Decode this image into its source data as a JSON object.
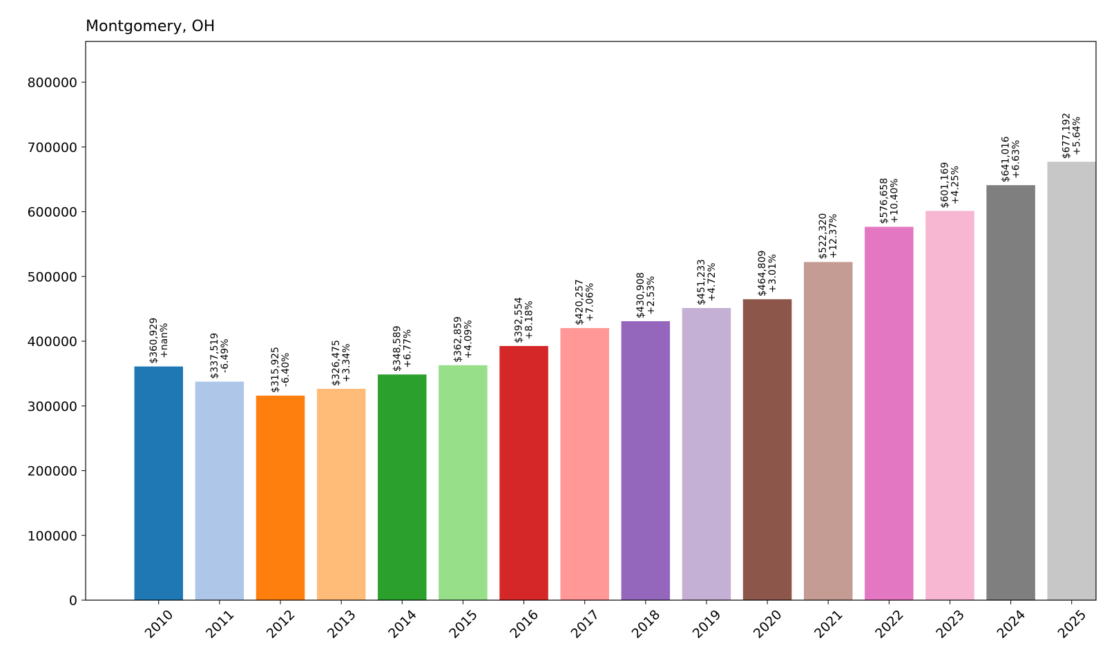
{
  "chart_data": {
    "type": "bar",
    "title": "Montgomery, OH",
    "xlabel": "",
    "ylabel": "",
    "ylim": [
      0,
      863000
    ],
    "yticks": [
      0,
      100000,
      200000,
      300000,
      400000,
      500000,
      600000,
      700000,
      800000
    ],
    "grid": false,
    "legend": "none",
    "categories": [
      "2010",
      "2011",
      "2012",
      "2013",
      "2014",
      "2015",
      "2016",
      "2017",
      "2018",
      "2019",
      "2020",
      "2021",
      "2022",
      "2023",
      "2024",
      "2025"
    ],
    "values": [
      360929,
      337519,
      315925,
      326475,
      348589,
      362859,
      392554,
      420257,
      430908,
      451233,
      464809,
      522320,
      576658,
      601169,
      641016,
      677192
    ],
    "value_labels": [
      "$360,929",
      "$337,519",
      "$315,925",
      "$326,475",
      "$348,589",
      "$362,859",
      "$392,554",
      "$420,257",
      "$430,908",
      "$451,233",
      "$464,809",
      "$522,320",
      "$576,658",
      "$601,169",
      "$641,016",
      "$677,192"
    ],
    "change_labels": [
      "+nan%",
      "-6.49%",
      "-6.40%",
      "+3.34%",
      "+6.77%",
      "+4.09%",
      "+8.18%",
      "+7.06%",
      "+2.53%",
      "+4.72%",
      "+3.01%",
      "+12.37%",
      "+10.40%",
      "+4.25%",
      "+6.63%",
      "+5.64%"
    ],
    "colors": [
      "#1f77b4",
      "#aec7e8",
      "#ff7f0e",
      "#ffbb78",
      "#2ca02c",
      "#98df8a",
      "#d62728",
      "#ff9896",
      "#9467bd",
      "#c5b0d5",
      "#8c564b",
      "#c49c94",
      "#e377c2",
      "#f7b6d2",
      "#7f7f7f",
      "#c7c7c7"
    ]
  }
}
